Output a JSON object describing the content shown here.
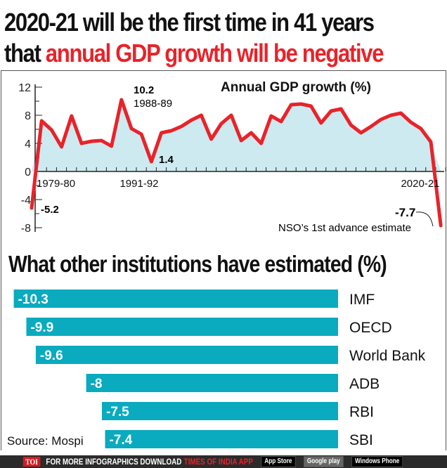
{
  "title": {
    "line1": "2020-21 will be the first time in 41 years",
    "line2_prefix": "that ",
    "line2_highlight": "annual GDP growth will be negative"
  },
  "colors": {
    "line": "#e8232a",
    "fill": "#cdeaf0",
    "bar": "#0aaabf"
  },
  "chart_data": [
    {
      "type": "area",
      "title": "Annual GDP growth (%)",
      "ylim": [
        -8,
        12
      ],
      "yticks": [
        12,
        8,
        4,
        0,
        -4,
        -8
      ],
      "x_labels": [
        "1979-80",
        "1991-92",
        "2020-21"
      ],
      "x": [
        "1979-80",
        "1980-81",
        "1981-82",
        "1982-83",
        "1983-84",
        "1984-85",
        "1985-86",
        "1986-87",
        "1987-88",
        "1988-89",
        "1989-90",
        "1990-91",
        "1991-92",
        "1992-93",
        "1993-94",
        "1994-95",
        "1995-96",
        "1996-97",
        "1997-98",
        "1998-99",
        "1999-00",
        "2000-01",
        "2001-02",
        "2002-03",
        "2003-04",
        "2004-05",
        "2005-06",
        "2006-07",
        "2007-08",
        "2008-09",
        "2009-10",
        "2010-11",
        "2011-12",
        "2012-13",
        "2013-14",
        "2014-15",
        "2015-16",
        "2016-17",
        "2017-18",
        "2018-19",
        "2019-20",
        "2020-21"
      ],
      "values": [
        -5.2,
        7.2,
        5.9,
        3.5,
        7.9,
        4.0,
        4.3,
        4.4,
        3.6,
        10.2,
        6.1,
        5.3,
        1.4,
        5.5,
        5.8,
        6.4,
        7.3,
        8.0,
        4.6,
        6.8,
        8.0,
        4.4,
        5.5,
        4.0,
        7.9,
        7.1,
        9.5,
        9.6,
        9.3,
        6.9,
        8.6,
        8.9,
        6.6,
        5.5,
        6.4,
        7.4,
        8.0,
        8.3,
        7.0,
        6.1,
        4.2,
        -7.7
      ],
      "annotations": [
        {
          "text": "10.2",
          "sub": "1988-89"
        },
        {
          "text": "1.4"
        },
        {
          "text": "-5.2"
        },
        {
          "text": "-7.7",
          "sub": "NSO’s 1st advance estimate"
        }
      ]
    },
    {
      "type": "bar",
      "title": "What other institutions have estimated (%)",
      "categories": [
        "IMF",
        "OECD",
        "World Bank",
        "ADB",
        "RBI",
        "SBI"
      ],
      "values": [
        -10.3,
        -9.9,
        -9.6,
        -8,
        -7.5,
        -7.4
      ]
    }
  ],
  "source": "Source: Mospi",
  "footer": {
    "brand": "TOI",
    "text": "FOR MORE  INFOGRAPHICS DOWNLOAD",
    "app": "TIMES OF INDIA  APP",
    "badges": [
      "App Store",
      "Google play",
      "Windows Phone"
    ]
  }
}
